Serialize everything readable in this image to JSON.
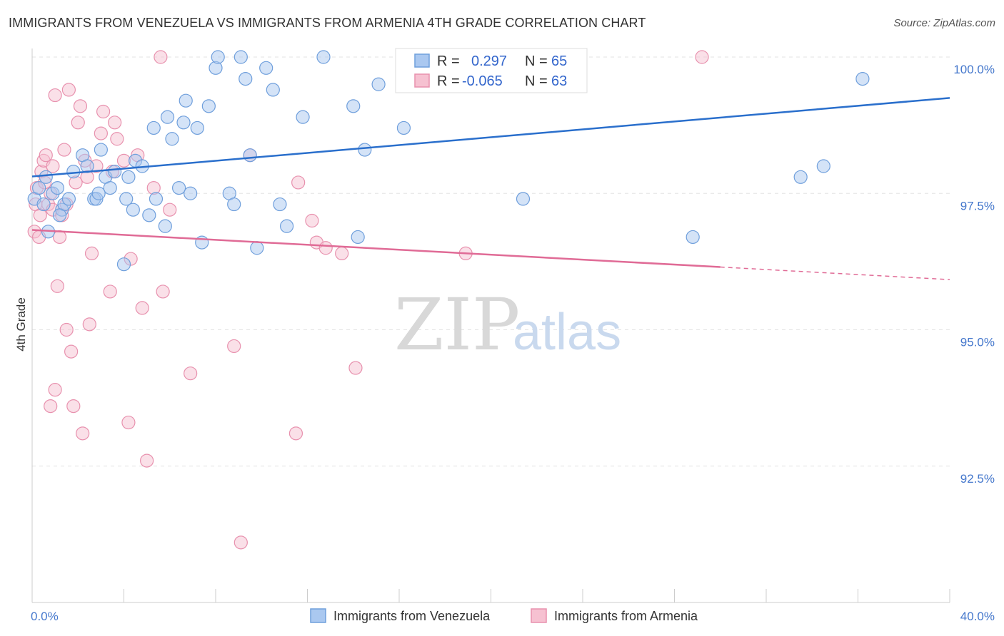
{
  "title": "IMMIGRANTS FROM VENEZUELA VS IMMIGRANTS FROM ARMENIA 4TH GRADE CORRELATION CHART",
  "source": "Source: ZipAtlas.com",
  "watermark": {
    "zip": "ZIP",
    "atlas": "atlas"
  },
  "legend_top": {
    "rows": [
      {
        "r_label": "R =",
        "r_value": "0.297",
        "n_label": "N =",
        "n_value": "65"
      },
      {
        "r_label": "R =",
        "r_value": "-0.065",
        "n_label": "N =",
        "n_value": "63"
      }
    ]
  },
  "colors": {
    "venezuela_fill": "#aac8f0",
    "venezuela_stroke": "#6f9fdc",
    "venezuela_line": "#2a6fcc",
    "armenia_fill": "#f6c1d1",
    "armenia_stroke": "#e891ae",
    "armenia_line": "#e06b96",
    "tick_text": "#4477cc",
    "grid": "#e3e3e3"
  },
  "chart_data": {
    "type": "scatter",
    "title": "IMMIGRANTS FROM VENEZUELA VS IMMIGRANTS FROM ARMENIA 4TH GRADE CORRELATION CHART",
    "xlabel": "",
    "ylabel": "4th Grade",
    "xlim": [
      0,
      40
    ],
    "ylim": [
      90.0,
      100.5
    ],
    "x_tick_labels": [
      "0.0%",
      "40.0%"
    ],
    "y_ticks": [
      100.0,
      97.5,
      95.0,
      92.5
    ],
    "y_tick_labels": [
      "100.0%",
      "97.5%",
      "95.0%",
      "92.5%"
    ],
    "grid": true,
    "legend_position": "bottom",
    "series": [
      {
        "name": "Immigrants from Venezuela",
        "r": 0.297,
        "n": 65,
        "trend": {
          "x0": 0,
          "y0": 97.81,
          "x1": 40,
          "y1": 99.25
        },
        "points": [
          [
            0.1,
            97.4
          ],
          [
            0.3,
            97.6
          ],
          [
            0.5,
            97.3
          ],
          [
            0.7,
            96.8
          ],
          [
            0.9,
            97.5
          ],
          [
            1.1,
            97.6
          ],
          [
            1.3,
            97.2
          ],
          [
            1.4,
            97.3
          ],
          [
            1.6,
            97.4
          ],
          [
            1.8,
            97.9
          ],
          [
            2.2,
            98.2
          ],
          [
            2.4,
            98.0
          ],
          [
            2.7,
            97.4
          ],
          [
            2.8,
            97.4
          ],
          [
            3.0,
            98.3
          ],
          [
            3.2,
            97.8
          ],
          [
            3.4,
            97.6
          ],
          [
            3.6,
            97.9
          ],
          [
            4.0,
            96.2
          ],
          [
            4.1,
            97.4
          ],
          [
            4.2,
            97.8
          ],
          [
            4.4,
            97.2
          ],
          [
            4.5,
            98.1
          ],
          [
            4.8,
            98.0
          ],
          [
            5.1,
            97.1
          ],
          [
            5.3,
            98.7
          ],
          [
            5.4,
            97.4
          ],
          [
            5.8,
            96.9
          ],
          [
            5.9,
            98.9
          ],
          [
            6.1,
            98.5
          ],
          [
            6.4,
            97.6
          ],
          [
            6.6,
            98.8
          ],
          [
            6.7,
            99.2
          ],
          [
            7.2,
            98.7
          ],
          [
            7.4,
            96.6
          ],
          [
            7.7,
            99.1
          ],
          [
            8.0,
            99.8
          ],
          [
            8.1,
            100.0
          ],
          [
            8.6,
            97.5
          ],
          [
            8.8,
            97.3
          ],
          [
            9.1,
            100.0
          ],
          [
            9.3,
            99.6
          ],
          [
            9.5,
            98.2
          ],
          [
            9.8,
            96.5
          ],
          [
            10.2,
            99.8
          ],
          [
            10.5,
            99.4
          ],
          [
            10.8,
            97.3
          ],
          [
            11.1,
            96.9
          ],
          [
            11.8,
            98.9
          ],
          [
            12.7,
            100.0
          ],
          [
            14.0,
            99.1
          ],
          [
            14.2,
            96.7
          ],
          [
            14.5,
            98.3
          ],
          [
            15.1,
            99.5
          ],
          [
            16.2,
            98.7
          ],
          [
            17.6,
            100.0
          ],
          [
            21.4,
            97.4
          ],
          [
            28.8,
            96.7
          ],
          [
            33.5,
            97.8
          ],
          [
            34.5,
            98.0
          ],
          [
            36.2,
            99.6
          ],
          [
            1.2,
            97.1
          ],
          [
            2.9,
            97.5
          ],
          [
            0.6,
            97.8
          ],
          [
            6.9,
            97.5
          ]
        ]
      },
      {
        "name": "Immigrants from Armenia",
        "r": -0.065,
        "n": 63,
        "trend": {
          "x0": 0,
          "y0": 96.83,
          "x1": 30,
          "y1": 96.15,
          "dash_x1": 40,
          "dash_y1": 95.92
        },
        "points": [
          [
            0.1,
            96.8
          ],
          [
            0.2,
            97.6
          ],
          [
            0.3,
            96.7
          ],
          [
            0.4,
            97.9
          ],
          [
            0.5,
            98.1
          ],
          [
            0.6,
            98.2
          ],
          [
            0.7,
            97.3
          ],
          [
            0.8,
            97.5
          ],
          [
            0.9,
            97.2
          ],
          [
            1.0,
            99.3
          ],
          [
            1.1,
            95.8
          ],
          [
            1.2,
            96.7
          ],
          [
            1.3,
            97.1
          ],
          [
            1.4,
            98.3
          ],
          [
            1.5,
            95.0
          ],
          [
            1.6,
            99.4
          ],
          [
            1.7,
            94.6
          ],
          [
            1.8,
            93.6
          ],
          [
            2.0,
            98.8
          ],
          [
            2.1,
            99.1
          ],
          [
            2.2,
            93.1
          ],
          [
            2.4,
            97.8
          ],
          [
            2.5,
            95.1
          ],
          [
            2.6,
            96.4
          ],
          [
            2.8,
            98.0
          ],
          [
            3.0,
            98.6
          ],
          [
            3.1,
            99.0
          ],
          [
            3.4,
            95.7
          ],
          [
            3.6,
            98.8
          ],
          [
            3.7,
            98.5
          ],
          [
            4.0,
            98.1
          ],
          [
            4.2,
            93.3
          ],
          [
            4.3,
            96.3
          ],
          [
            4.6,
            98.2
          ],
          [
            4.8,
            95.4
          ],
          [
            5.0,
            92.6
          ],
          [
            5.3,
            97.6
          ],
          [
            5.6,
            100.0
          ],
          [
            5.7,
            95.7
          ],
          [
            6.0,
            97.2
          ],
          [
            6.9,
            94.2
          ],
          [
            8.8,
            94.7
          ],
          [
            9.1,
            91.1
          ],
          [
            9.5,
            98.2
          ],
          [
            11.5,
            93.1
          ],
          [
            11.6,
            97.7
          ],
          [
            12.2,
            97.0
          ],
          [
            12.4,
            96.6
          ],
          [
            12.8,
            96.5
          ],
          [
            13.5,
            96.4
          ],
          [
            14.1,
            94.3
          ],
          [
            18.9,
            96.4
          ],
          [
            29.2,
            100.0
          ],
          [
            0.15,
            97.3
          ],
          [
            0.35,
            97.1
          ],
          [
            0.55,
            97.7
          ],
          [
            0.9,
            98.0
          ],
          [
            1.9,
            97.7
          ],
          [
            2.3,
            98.1
          ],
          [
            1.0,
            93.9
          ],
          [
            0.8,
            93.6
          ],
          [
            1.5,
            97.3
          ],
          [
            3.5,
            97.9
          ]
        ]
      }
    ]
  }
}
